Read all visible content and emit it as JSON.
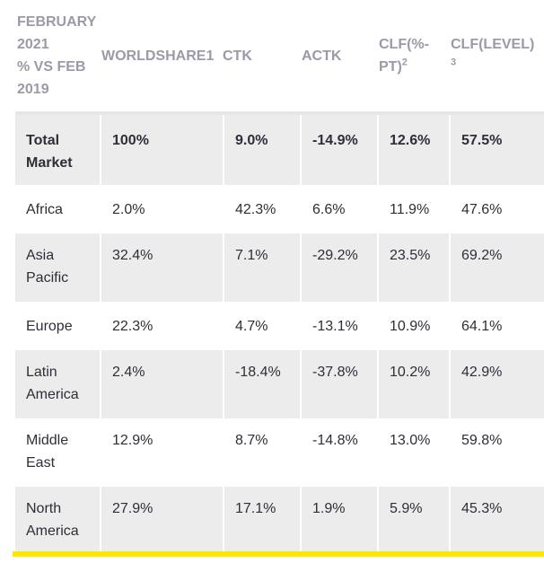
{
  "table": {
    "headers": [
      [
        "FEBRUARY",
        "2021",
        "% VS FEB",
        "2019"
      ],
      "WORLDSHARE1",
      "CTK",
      "ACTK",
      "CLF(%-PT)",
      "CLF(LEVEL)"
    ],
    "header_sup": {
      "clf_pt": "2",
      "clf_level": "3"
    },
    "rows": [
      {
        "region": [
          "Total",
          "Market"
        ],
        "worldshare": "100%",
        "ctk": "9.0%",
        "actk": "-14.9%",
        "clf_pt": "12.6%",
        "clf_level": "57.5%"
      },
      {
        "region": [
          "Africa"
        ],
        "worldshare": "2.0%",
        "ctk": "42.3%",
        "actk": "6.6%",
        "clf_pt": "11.9%",
        "clf_level": "47.6%"
      },
      {
        "region": [
          "Asia",
          "Pacific"
        ],
        "worldshare": "32.4%",
        "ctk": "7.1%",
        "actk": "-29.2%",
        "clf_pt": "23.5%",
        "clf_level": "69.2%"
      },
      {
        "region": [
          "Europe"
        ],
        "worldshare": "22.3%",
        "ctk": "4.7%",
        "actk": "-13.1%",
        "clf_pt": "10.9%",
        "clf_level": "64.1%"
      },
      {
        "region": [
          "Latin",
          "America"
        ],
        "worldshare": "2.4%",
        "ctk": "-18.4%",
        "actk": "-37.8%",
        "clf_pt": "10.2%",
        "clf_level": "42.9%"
      },
      {
        "region": [
          "Middle",
          "East"
        ],
        "worldshare": "12.9%",
        "ctk": "8.7%",
        "actk": "-14.8%",
        "clf_pt": "13.0%",
        "clf_level": "59.8%"
      },
      {
        "region": [
          "North",
          "America"
        ],
        "worldshare": "27.9%",
        "ctk": "17.1%",
        "actk": "1.9%",
        "clf_pt": "5.9%",
        "clf_level": "45.3%"
      }
    ]
  },
  "colors": {
    "header_text": "#9a9aa8",
    "body_text": "#2e2e38",
    "row_shade": "#ececec",
    "accent_bar": "#ffe600"
  }
}
